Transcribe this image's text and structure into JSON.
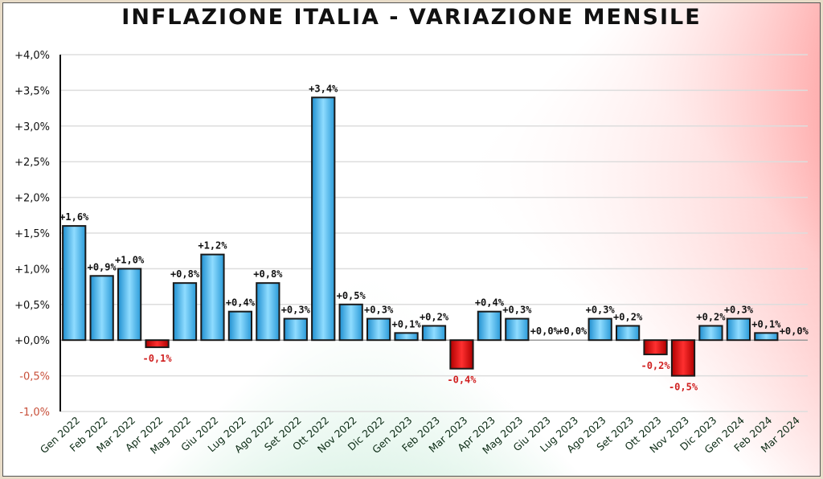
{
  "chart_data": {
    "type": "bar",
    "title": "INFLAZIONE ITALIA - VARIAZIONE MENSILE",
    "xlabel": "",
    "ylabel": "",
    "ylim": [
      -1.0,
      4.0
    ],
    "yticks": [
      4.0,
      3.5,
      3.0,
      2.5,
      2.0,
      1.5,
      1.0,
      0.5,
      0.0,
      -0.5,
      -1.0
    ],
    "ytick_labels": [
      "+4,0%",
      "+3,5%",
      "+3,0%",
      "+2,5%",
      "+2,0%",
      "+1,5%",
      "+1,0%",
      "+0,5%",
      "+0,0%",
      "-0,5%",
      "-1,0%"
    ],
    "grid": true,
    "categories": [
      "Gen 2022",
      "Feb 2022",
      "Mar 2022",
      "Apr 2022",
      "Mag 2022",
      "Giu 2022",
      "Lug 2022",
      "Ago 2022",
      "Set 2022",
      "Ott 2022",
      "Nov 2022",
      "Dic 2022",
      "Gen 2023",
      "Feb 2023",
      "Mar 2023",
      "Apr 2023",
      "Mag 2023",
      "Giu 2023",
      "Lug 2023",
      "Ago 2023",
      "Set 2023",
      "Ott 2023",
      "Nov 2023",
      "Dic 2023",
      "Gen 2024",
      "Feb 2024",
      "Mar 2024"
    ],
    "values": [
      1.6,
      0.9,
      1.0,
      -0.1,
      0.8,
      1.2,
      0.4,
      0.8,
      0.3,
      3.4,
      0.5,
      0.3,
      0.1,
      0.2,
      -0.4,
      0.4,
      0.3,
      0.0,
      0.0,
      0.3,
      0.2,
      -0.2,
      -0.5,
      0.2,
      0.3,
      0.1,
      0.0
    ],
    "data_labels": [
      "+1,6%",
      "+0,9%",
      "+1,0%",
      "-0,1%",
      "+0,8%",
      "+1,2%",
      "+0,4%",
      "+0,8%",
      "+0,3%",
      "+3,4%",
      "+0,5%",
      "+0,3%",
      "+0,1%",
      "+0,2%",
      "-0,4%",
      "+0,4%",
      "+0,3%",
      "+0,0%",
      "+0,0%",
      "+0,3%",
      "+0,2%",
      "-0,2%",
      "-0,5%",
      "+0,2%",
      "+0,3%",
      "+0,1%",
      "+0,0%"
    ],
    "colors": {
      "positive": "#3bb0e6",
      "negative": "#e01010",
      "negative_label": "#d02020",
      "negative_tick": "#c8503a"
    }
  }
}
